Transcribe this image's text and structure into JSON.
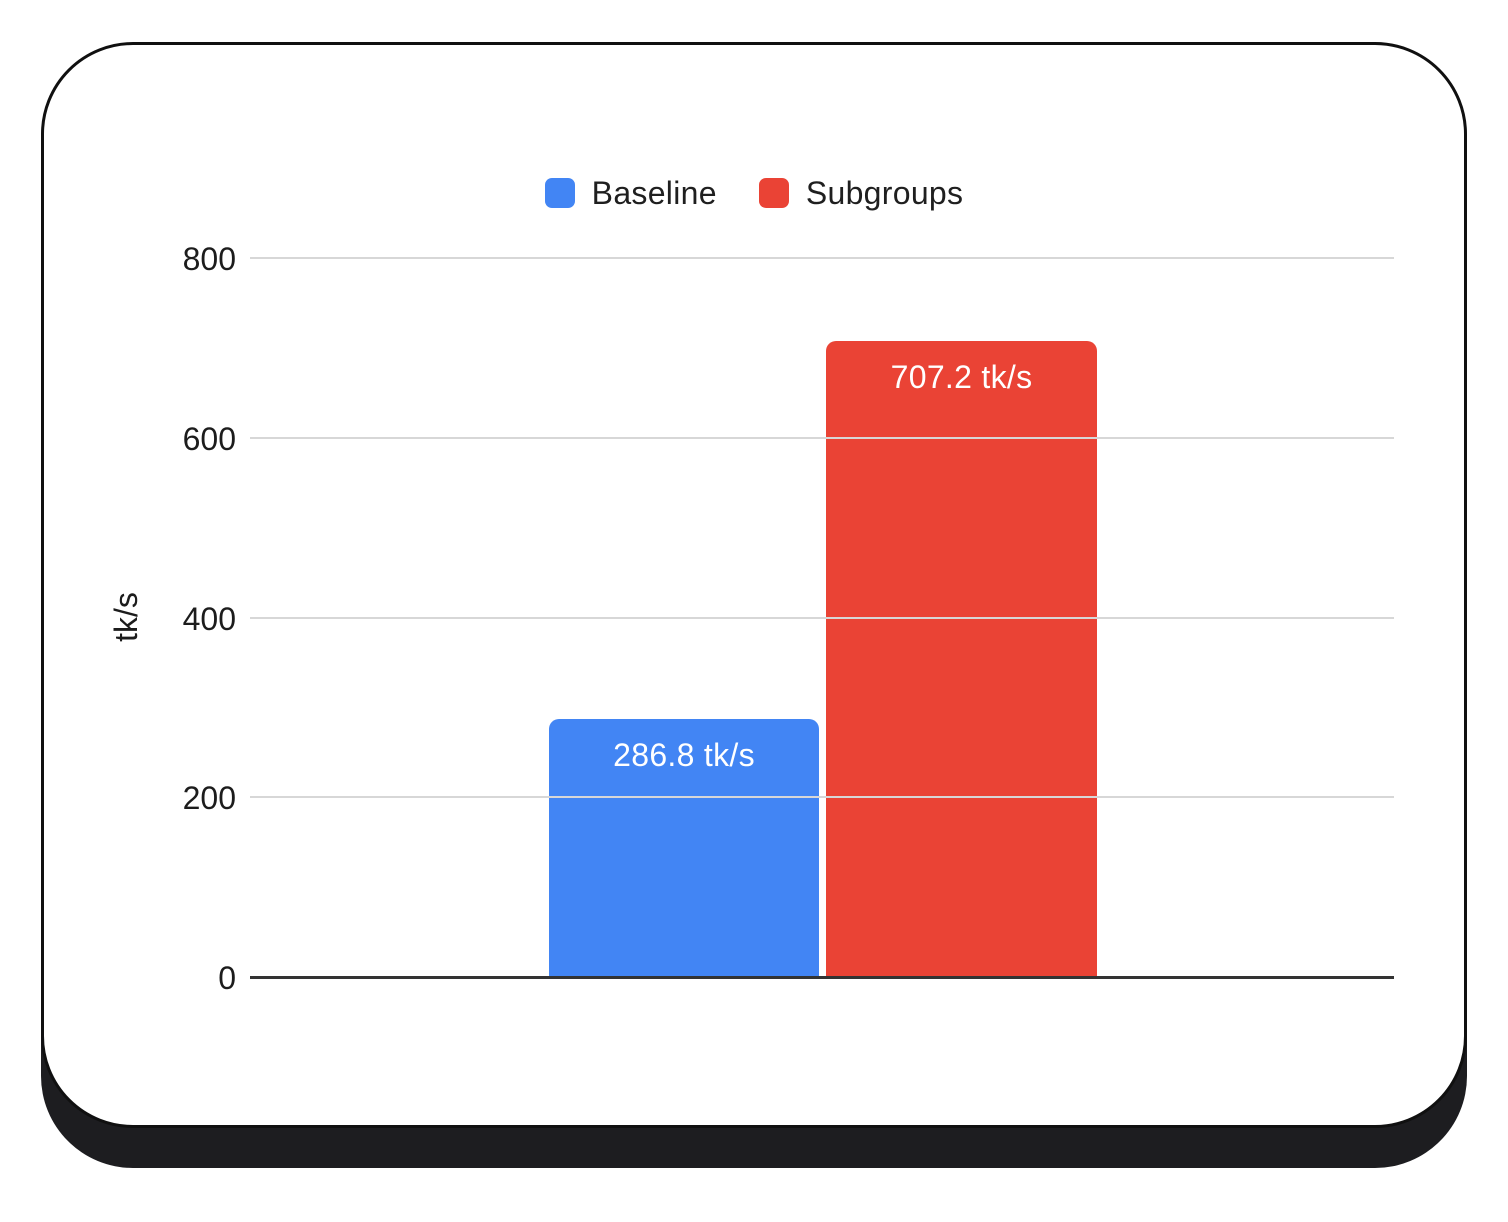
{
  "chart_data": {
    "type": "bar",
    "title": "",
    "categories": [
      ""
    ],
    "series": [
      {
        "name": "Baseline",
        "values": [
          286.8
        ],
        "color": "#4285F4",
        "data_label": "286.8 tk/s"
      },
      {
        "name": "Subgroups",
        "values": [
          707.2
        ],
        "color": "#EA4335",
        "data_label": "707.2 tk/s"
      }
    ],
    "xlabel": "",
    "ylabel": "tk/s",
    "ylim": [
      0,
      800
    ],
    "yticks": [
      0,
      200,
      400,
      600,
      800
    ],
    "grid": true,
    "legend_position": "top",
    "value_unit": "tk/s"
  },
  "styles": {
    "background": "#ffffff",
    "card_background": "#ffffff",
    "card_border_color": "#101010",
    "card_shadow_color": "#1d1d20",
    "grid_color": "#d7d7d7",
    "zero_axis_color": "#333333",
    "tick_text_color": "#1c1c1c",
    "legend_text_color": "#1f1f1f",
    "bar_label_color": "#ffffff"
  }
}
